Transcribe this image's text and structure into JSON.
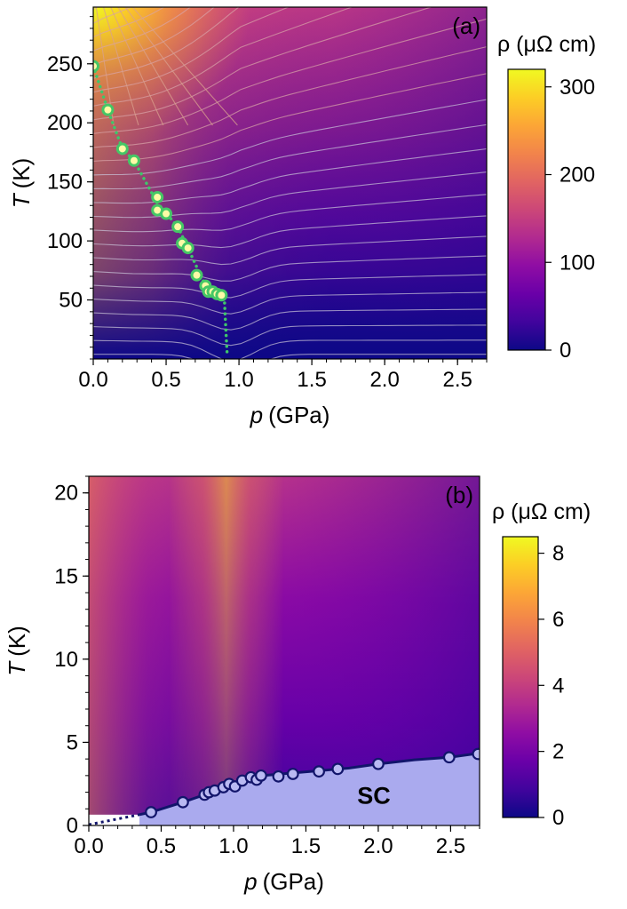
{
  "chart_data": [
    {
      "type": "heatmap",
      "panel_label": "(a)",
      "xlabel_italic": "p",
      "xlabel_unit": "(GPa)",
      "ylabel_italic": "T",
      "ylabel_unit": "(K)",
      "xlim": [
        0,
        2.7
      ],
      "ylim": [
        0,
        298
      ],
      "xticks": [
        0.0,
        0.5,
        1.0,
        1.5,
        2.0,
        2.5
      ],
      "xtick_labels": [
        "0.0",
        "0.5",
        "1.0",
        "1.5",
        "2.0",
        "2.5"
      ],
      "yticks": [
        50,
        100,
        150,
        200,
        250
      ],
      "ytick_labels": [
        "50",
        "100",
        "150",
        "200",
        "250"
      ],
      "colorbar": {
        "label": "ρ (μΩ cm)",
        "range": [
          0,
          320
        ],
        "ticks": [
          0,
          100,
          200,
          300
        ],
        "tick_labels": [
          "0",
          "100",
          "200",
          "300"
        ]
      },
      "transition_points": [
        {
          "p": 0.0,
          "T": 248
        },
        {
          "p": 0.1,
          "T": 211
        },
        {
          "p": 0.2,
          "T": 178
        },
        {
          "p": 0.28,
          "T": 168
        },
        {
          "p": 0.44,
          "T": 137
        },
        {
          "p": 0.44,
          "T": 126
        },
        {
          "p": 0.5,
          "T": 123
        },
        {
          "p": 0.58,
          "T": 112
        },
        {
          "p": 0.61,
          "T": 98
        },
        {
          "p": 0.65,
          "T": 94
        },
        {
          "p": 0.71,
          "T": 71
        },
        {
          "p": 0.77,
          "T": 62
        },
        {
          "p": 0.79,
          "T": 57
        },
        {
          "p": 0.82,
          "T": 57
        },
        {
          "p": 0.85,
          "T": 55
        },
        {
          "p": 0.88,
          "T": 54
        }
      ],
      "dotted_line": [
        {
          "p": 0.0,
          "T": 248
        },
        {
          "p": 0.1,
          "T": 211
        },
        {
          "p": 0.2,
          "T": 178
        },
        {
          "p": 0.28,
          "T": 168
        },
        {
          "p": 0.44,
          "T": 132
        },
        {
          "p": 0.58,
          "T": 112
        },
        {
          "p": 0.65,
          "T": 94
        },
        {
          "p": 0.77,
          "T": 62
        },
        {
          "p": 0.88,
          "T": 54
        },
        {
          "p": 0.9,
          "T": 50
        },
        {
          "p": 0.91,
          "T": 25
        },
        {
          "p": 0.92,
          "T": 2
        }
      ]
    },
    {
      "type": "heatmap",
      "panel_label": "(b)",
      "xlabel_italic": "p",
      "xlabel_unit": "(GPa)",
      "ylabel_italic": "T",
      "ylabel_unit": "(K)",
      "xlim": [
        0,
        2.7
      ],
      "ylim": [
        0,
        21
      ],
      "xticks": [
        0.0,
        0.5,
        1.0,
        1.5,
        2.0,
        2.5
      ],
      "xtick_labels": [
        "0.0",
        "0.5",
        "1.0",
        "1.5",
        "2.0",
        "2.5"
      ],
      "yticks": [
        0,
        5,
        10,
        15,
        20
      ],
      "ytick_labels": [
        "0",
        "5",
        "10",
        "15",
        "20"
      ],
      "colorbar": {
        "label": "ρ (μΩ cm)",
        "range": [
          0,
          8.5
        ],
        "ticks": [
          0,
          2,
          4,
          6,
          8
        ],
        "tick_labels": [
          "0",
          "2",
          "4",
          "6",
          "8"
        ]
      },
      "region_label": "SC",
      "tc_points": [
        {
          "p": 0.43,
          "T": 0.8
        },
        {
          "p": 0.65,
          "T": 1.4
        },
        {
          "p": 0.8,
          "T": 1.85
        },
        {
          "p": 0.83,
          "T": 2.0
        },
        {
          "p": 0.87,
          "T": 2.1
        },
        {
          "p": 0.93,
          "T": 2.3
        },
        {
          "p": 0.97,
          "T": 2.5
        },
        {
          "p": 1.01,
          "T": 2.35
        },
        {
          "p": 1.06,
          "T": 2.7
        },
        {
          "p": 1.12,
          "T": 2.9
        },
        {
          "p": 1.16,
          "T": 2.75
        },
        {
          "p": 1.19,
          "T": 3.0
        },
        {
          "p": 1.31,
          "T": 2.95
        },
        {
          "p": 1.41,
          "T": 3.1
        },
        {
          "p": 1.59,
          "T": 3.25
        },
        {
          "p": 1.72,
          "T": 3.4
        },
        {
          "p": 2.0,
          "T": 3.7
        },
        {
          "p": 2.49,
          "T": 4.1
        },
        {
          "p": 2.69,
          "T": 4.3
        }
      ],
      "tc_line": [
        {
          "p": 0.35,
          "T": 0.65
        },
        {
          "p": 0.43,
          "T": 0.8
        },
        {
          "p": 0.65,
          "T": 1.4
        },
        {
          "p": 0.8,
          "T": 1.85
        },
        {
          "p": 0.9,
          "T": 2.25
        },
        {
          "p": 1.0,
          "T": 2.55
        },
        {
          "p": 1.1,
          "T": 2.8
        },
        {
          "p": 1.2,
          "T": 3.0
        },
        {
          "p": 1.4,
          "T": 3.15
        },
        {
          "p": 1.6,
          "T": 3.3
        },
        {
          "p": 1.8,
          "T": 3.45
        },
        {
          "p": 2.0,
          "T": 3.7
        },
        {
          "p": 2.25,
          "T": 3.95
        },
        {
          "p": 2.49,
          "T": 4.1
        },
        {
          "p": 2.7,
          "T": 4.35
        }
      ],
      "dotted_extrapolation": [
        {
          "p": 0.0,
          "T": 0.05
        },
        {
          "p": 0.35,
          "T": 0.65
        }
      ],
      "white_region_T": 0.65
    }
  ]
}
